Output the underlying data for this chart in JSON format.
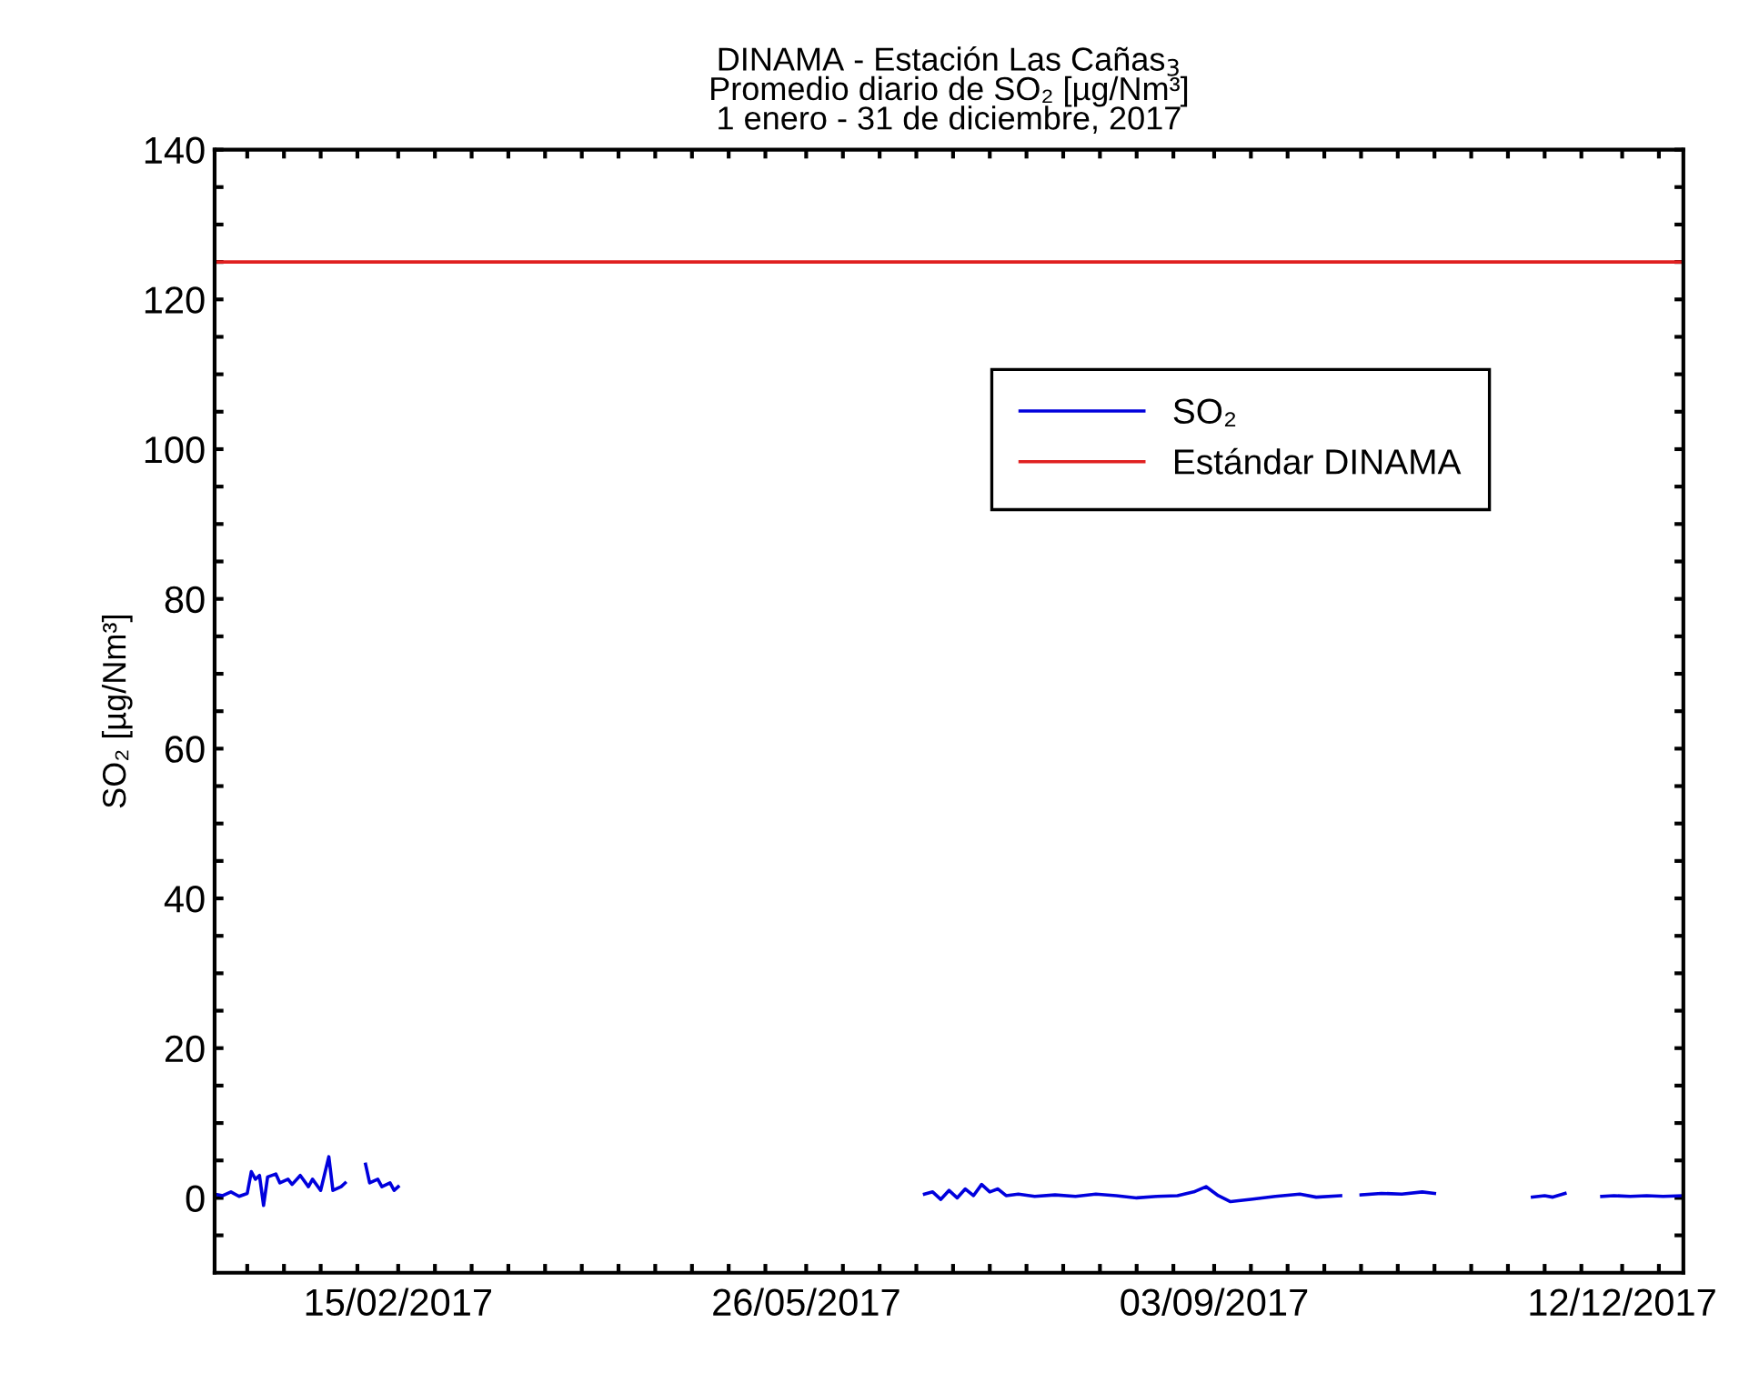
{
  "chart_data": {
    "type": "line",
    "title": "DINAMA - Estación Las Cañas$_{3}$\nPromedio diario de SO₂ [µg/Nm³]\n1 enero - 31 de diciembre, 2017",
    "ylabel": "SO₂ [µg/Nm³]",
    "x": [
      "2017-01-01",
      "2017-01-03",
      "2017-01-05",
      "2017-01-07",
      "2017-01-09",
      "2017-01-10",
      "2017-01-11",
      "2017-01-12",
      "2017-01-13",
      "2017-01-14",
      "2017-01-16",
      "2017-01-17",
      "2017-01-19",
      "2017-01-20",
      "2017-01-22",
      "2017-01-24",
      "2017-01-25",
      "2017-01-27",
      "2017-01-29",
      "2017-01-30",
      "2017-02-01",
      "2017-02-02",
      "2017-02-05",
      "2017-02-07",
      "2017-02-08",
      "2017-02-10",
      "2017-02-11",
      "2017-02-13",
      "2017-02-14",
      "2017-02-15",
      "2017-02-16",
      "2017-06-24",
      "2017-06-26",
      "2017-06-28",
      "2017-06-30",
      "2017-07-02",
      "2017-07-04",
      "2017-07-06",
      "2017-07-08",
      "2017-07-10",
      "2017-07-12",
      "2017-07-14",
      "2017-07-17",
      "2017-07-21",
      "2017-07-26",
      "2017-07-31",
      "2017-08-05",
      "2017-08-10",
      "2017-08-15",
      "2017-08-20",
      "2017-08-25",
      "2017-08-29",
      "2017-09-01",
      "2017-09-04",
      "2017-09-07",
      "2017-09-12",
      "2017-09-18",
      "2017-09-24",
      "2017-09-28",
      "2017-10-04",
      "2017-10-06",
      "2017-10-09",
      "2017-10-14",
      "2017-10-19",
      "2017-10-24",
      "2017-10-27",
      "2017-10-30",
      "2017-11-20",
      "2017-11-23",
      "2017-11-25",
      "2017-11-28",
      "2017-12-01",
      "2017-12-07",
      "2017-12-10",
      "2017-12-14",
      "2017-12-18",
      "2017-12-22",
      "2017-12-27"
    ],
    "series": [
      {
        "name": "SO₂",
        "color": "#0000dd",
        "values": [
          0.5,
          0.3,
          0.8,
          0.2,
          0.6,
          3.5,
          2.5,
          3.0,
          -1.0,
          2.8,
          3.2,
          2.0,
          2.5,
          1.8,
          3.0,
          1.5,
          2.5,
          1.0,
          5.5,
          1.0,
          1.5,
          2.0,
          null,
          4.5,
          2.0,
          2.5,
          1.5,
          2.0,
          1.0,
          1.5,
          null,
          0.5,
          0.8,
          -0.2,
          1.0,
          0.0,
          1.2,
          0.3,
          1.8,
          0.8,
          1.2,
          0.3,
          0.5,
          0.2,
          0.4,
          0.2,
          0.5,
          0.3,
          0.0,
          0.2,
          0.3,
          0.8,
          1.5,
          0.3,
          -0.5,
          -0.2,
          0.2,
          0.5,
          0.1,
          0.3,
          null,
          0.4,
          0.6,
          0.5,
          0.8,
          0.6,
          null,
          0.1,
          0.3,
          0.1,
          0.6,
          null,
          0.2,
          0.3,
          0.2,
          0.3,
          0.2,
          0.3
        ]
      }
    ],
    "ref_lines": [
      {
        "axis": "y",
        "value": 125,
        "label": "Estándar DINAMA",
        "color": "#e02020"
      }
    ],
    "xlim": [
      "2017-01-01",
      "2017-12-27"
    ],
    "xticks": [
      {
        "value": "2017-01-09",
        "label": null
      },
      {
        "value": "2017-01-18",
        "label": null
      },
      {
        "value": "2017-01-27",
        "label": null
      },
      {
        "value": "2017-02-05",
        "label": null
      },
      {
        "value": "2017-02-15",
        "label": "15/02/2017"
      },
      {
        "value": "2017-02-24",
        "label": null
      },
      {
        "value": "2017-03-05",
        "label": null
      },
      {
        "value": "2017-03-14",
        "label": null
      },
      {
        "value": "2017-03-23",
        "label": null
      },
      {
        "value": "2017-04-01",
        "label": null
      },
      {
        "value": "2017-04-10",
        "label": null
      },
      {
        "value": "2017-04-19",
        "label": null
      },
      {
        "value": "2017-04-28",
        "label": null
      },
      {
        "value": "2017-05-07",
        "label": null
      },
      {
        "value": "2017-05-16",
        "label": null
      },
      {
        "value": "2017-05-26",
        "label": "26/05/2017"
      },
      {
        "value": "2017-06-04",
        "label": null
      },
      {
        "value": "2017-06-13",
        "label": null
      },
      {
        "value": "2017-06-22",
        "label": null
      },
      {
        "value": "2017-07-01",
        "label": null
      },
      {
        "value": "2017-07-10",
        "label": null
      },
      {
        "value": "2017-07-19",
        "label": null
      },
      {
        "value": "2017-07-28",
        "label": null
      },
      {
        "value": "2017-08-06",
        "label": null
      },
      {
        "value": "2017-08-15",
        "label": null
      },
      {
        "value": "2017-08-24",
        "label": null
      },
      {
        "value": "2017-09-03",
        "label": "03/09/2017"
      },
      {
        "value": "2017-09-12",
        "label": null
      },
      {
        "value": "2017-09-21",
        "label": null
      },
      {
        "value": "2017-09-30",
        "label": null
      },
      {
        "value": "2017-10-09",
        "label": null
      },
      {
        "value": "2017-10-18",
        "label": null
      },
      {
        "value": "2017-10-27",
        "label": null
      },
      {
        "value": "2017-11-05",
        "label": null
      },
      {
        "value": "2017-11-14",
        "label": null
      },
      {
        "value": "2017-11-23",
        "label": null
      },
      {
        "value": "2017-12-02",
        "label": null
      },
      {
        "value": "2017-12-12",
        "label": "12/12/2017"
      },
      {
        "value": "2017-12-21",
        "label": null
      }
    ],
    "ylim": [
      -10,
      140
    ],
    "yticks": [
      {
        "value": -5,
        "label": null
      },
      0,
      {
        "value": 5,
        "label": null
      },
      {
        "value": 10,
        "label": null
      },
      {
        "value": 15,
        "label": null
      },
      20,
      {
        "value": 25,
        "label": null
      },
      {
        "value": 30,
        "label": null
      },
      {
        "value": 35,
        "label": null
      },
      40,
      {
        "value": 45,
        "label": null
      },
      {
        "value": 50,
        "label": null
      },
      {
        "value": 55,
        "label": null
      },
      60,
      {
        "value": 65,
        "label": null
      },
      {
        "value": 70,
        "label": null
      },
      {
        "value": 75,
        "label": null
      },
      80,
      {
        "value": 85,
        "label": null
      },
      {
        "value": 90,
        "label": null
      },
      {
        "value": 95,
        "label": null
      },
      100,
      {
        "value": 105,
        "label": null
      },
      {
        "value": 110,
        "label": null
      },
      {
        "value": 115,
        "label": null
      },
      120,
      {
        "value": 125,
        "label": null
      },
      {
        "value": 130,
        "label": null
      },
      {
        "value": 135,
        "label": null
      },
      140
    ],
    "grid": false,
    "legend": "top right",
    "line_style": "solid"
  }
}
